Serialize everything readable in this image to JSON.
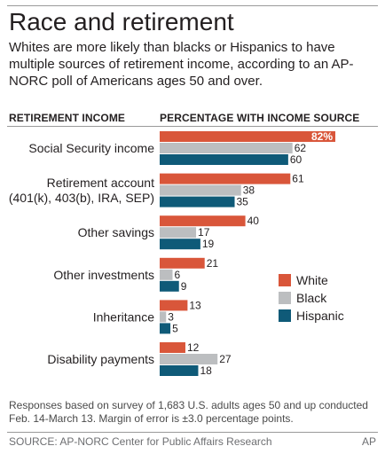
{
  "title": "Race and retirement",
  "subtitle": "Whites are more likely than blacks or Hispanics to have multiple sources of retirement income, according to an AP-NORC poll of Americans ages 50 and over.",
  "left_header": "RETIREMENT INCOME",
  "right_header": "PERCENTAGE WITH INCOME SOURCE",
  "footnote": "Responses based on survey of 1,683 U.S. adults ages 50 and up conducted Feb. 14-March 13. Margin of error is ±3.0 percentage points.",
  "source": "SOURCE: AP-NORC Center for Public Affairs Research",
  "credit": "AP",
  "colors": {
    "White": "#d9563a",
    "Black": "#bcbec0",
    "Hispanic": "#0f5a78"
  },
  "chart_data": {
    "type": "bar",
    "orientation": "horizontal",
    "categories": [
      [
        "Social Security income"
      ],
      [
        "Retirement account",
        "(401(k), 403(b), IRA, SEP)"
      ],
      [
        "Other savings"
      ],
      [
        "Other investments"
      ],
      [
        "Inheritance"
      ],
      [
        "Disability payments"
      ]
    ],
    "series": [
      {
        "name": "White",
        "values": [
          82,
          61,
          40,
          21,
          13,
          12
        ]
      },
      {
        "name": "Black",
        "values": [
          62,
          38,
          17,
          6,
          3,
          27
        ]
      },
      {
        "name": "Hispanic",
        "values": [
          60,
          35,
          19,
          9,
          5,
          18
        ]
      }
    ],
    "highlight_label": "82%",
    "xlim": [
      0,
      82
    ],
    "legend_position": "right"
  }
}
